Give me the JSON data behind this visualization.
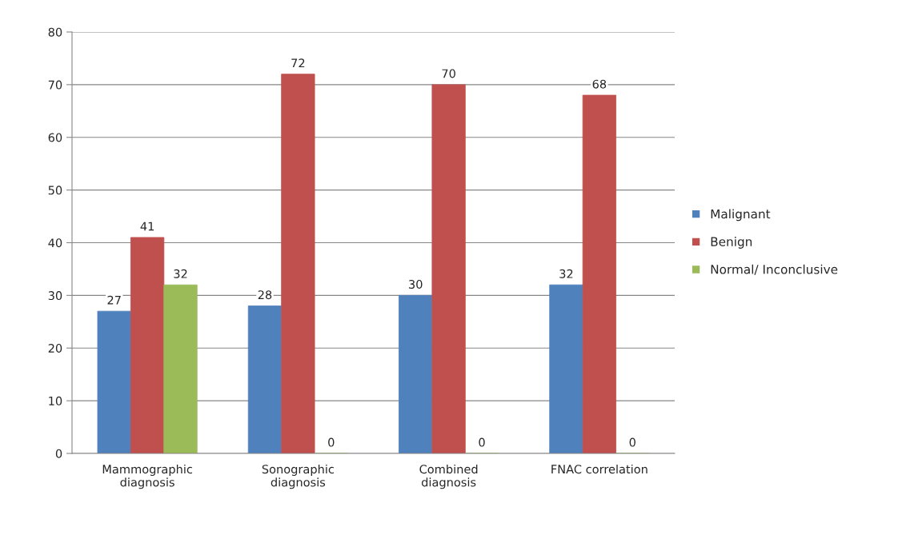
{
  "chart_data": {
    "type": "bar",
    "categories": [
      "Mammographic\ndiagnosis",
      "Sonographic\ndiagnosis",
      "Combined\ndiagnosis",
      "FNAC correlation"
    ],
    "series": [
      {
        "name": "Malignant",
        "color": "#4f81bd",
        "values": [
          27,
          28,
          30,
          32
        ]
      },
      {
        "name": "Benign",
        "color": "#c0504d",
        "values": [
          41,
          72,
          70,
          68
        ]
      },
      {
        "name": "Normal/ Inconclusive",
        "color": "#9bbb59",
        "values": [
          32,
          0,
          0,
          0
        ]
      }
    ],
    "ylim": [
      0,
      80
    ],
    "yticks": [
      0,
      10,
      20,
      30,
      40,
      50,
      60,
      70,
      80
    ],
    "grid": "y",
    "legend": "right",
    "data_labels": true
  }
}
